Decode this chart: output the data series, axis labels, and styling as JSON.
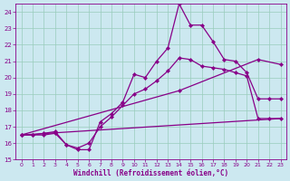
{
  "xlabel": "Windchill (Refroidissement éolien,°C)",
  "xlim": [
    -0.5,
    23.5
  ],
  "ylim": [
    15,
    24.5
  ],
  "yticks": [
    15,
    16,
    17,
    18,
    19,
    20,
    21,
    22,
    23,
    24
  ],
  "xticks": [
    0,
    1,
    2,
    3,
    4,
    5,
    6,
    7,
    8,
    9,
    10,
    11,
    12,
    13,
    14,
    15,
    16,
    17,
    18,
    19,
    20,
    21,
    22,
    23
  ],
  "bg_color": "#cce8f0",
  "line_color": "#880088",
  "grid_color": "#99ccbb",
  "curve1_x": [
    0,
    1,
    2,
    3,
    4,
    5,
    6,
    7,
    8,
    9,
    10,
    11,
    12,
    13,
    14,
    15,
    16,
    17,
    18,
    19,
    20,
    21,
    22,
    23
  ],
  "curve1_y": [
    16.5,
    16.5,
    16.6,
    16.7,
    15.9,
    15.6,
    15.6,
    17.3,
    17.8,
    18.5,
    20.2,
    20.0,
    21.0,
    21.8,
    24.5,
    23.2,
    23.2,
    22.2,
    21.1,
    21.0,
    20.3,
    18.7,
    18.7,
    18.7
  ],
  "curve2_x": [
    0,
    1,
    2,
    3,
    4,
    5,
    6,
    7,
    8,
    9,
    10,
    11,
    12,
    13,
    14,
    15,
    16,
    17,
    18,
    19,
    20,
    21,
    22,
    23
  ],
  "curve2_y": [
    16.5,
    16.5,
    16.5,
    16.6,
    15.9,
    15.7,
    16.0,
    17.0,
    17.6,
    18.3,
    19.0,
    19.3,
    19.8,
    20.4,
    21.2,
    21.1,
    20.7,
    20.6,
    20.5,
    20.3,
    20.1,
    17.5,
    17.5,
    17.5
  ],
  "curve3_x": [
    0,
    14,
    21,
    23
  ],
  "curve3_y": [
    16.5,
    19.2,
    21.1,
    20.8
  ],
  "curve4_x": [
    0,
    23
  ],
  "curve4_y": [
    16.5,
    17.5
  ]
}
